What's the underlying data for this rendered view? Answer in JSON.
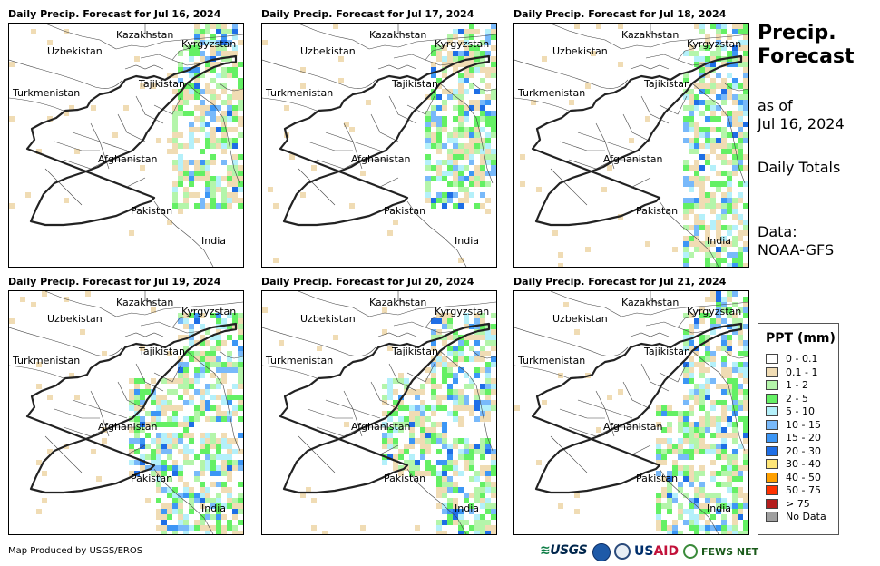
{
  "panels": [
    {
      "title": "Daily Precip. Forecast for Jul 16, 2024"
    },
    {
      "title": "Daily Precip. Forecast for Jul 17, 2024"
    },
    {
      "title": "Daily Precip. Forecast for Jul 18, 2024"
    },
    {
      "title": "Daily Precip. Forecast for Jul 19, 2024"
    },
    {
      "title": "Daily Precip. Forecast for Jul 20, 2024"
    },
    {
      "title": "Daily Precip. Forecast for Jul 21, 2024"
    }
  ],
  "map_labels": {
    "kazakhstan": "Kazakhstan",
    "kyrgyzstan": "Kyrgyzstan",
    "uzbekistan": "Uzbekistan",
    "tajikistan": "Tajikistan",
    "turkmenistan": "Turkmenistan",
    "afghanistan": "Afghanistan",
    "pakistan": "Pakistan",
    "india": "India"
  },
  "side": {
    "title_line1": "Precip.",
    "title_line2": "Forecast",
    "asof_line1": "as of",
    "asof_line2": "Jul 16, 2024",
    "totals": "Daily Totals",
    "data_line1": "Data:",
    "data_line2": "NOAA-GFS"
  },
  "legend": {
    "title": "PPT (mm)",
    "items": [
      {
        "label": "0 - 0.1",
        "color": "#ffffff"
      },
      {
        "label": "0.1 - 1",
        "color": "#f0dcb4"
      },
      {
        "label": "1 - 2",
        "color": "#b4f5aa"
      },
      {
        "label": "2 - 5",
        "color": "#64f064"
      },
      {
        "label": "5 - 10",
        "color": "#b4f0fa"
      },
      {
        "label": "10 - 15",
        "color": "#78b9fa"
      },
      {
        "label": "15 - 20",
        "color": "#3c96f5"
      },
      {
        "label": "20 - 30",
        "color": "#1e6ee6"
      },
      {
        "label": "30 - 40",
        "color": "#ffe678"
      },
      {
        "label": "40 - 50",
        "color": "#ffa000"
      },
      {
        "label": "50 - 75",
        "color": "#ff3200"
      },
      {
        "label": "> 75",
        "color": "#b41e1e"
      },
      {
        "label": "No Data",
        "color": "#a0a0a0"
      }
    ]
  },
  "footer": {
    "credit": "Map Produced by USGS/EROS",
    "logos": {
      "usgs": "USGS",
      "usaid_us": "US",
      "usaid_aid": "AID",
      "fews": "FEWS NET"
    }
  }
}
